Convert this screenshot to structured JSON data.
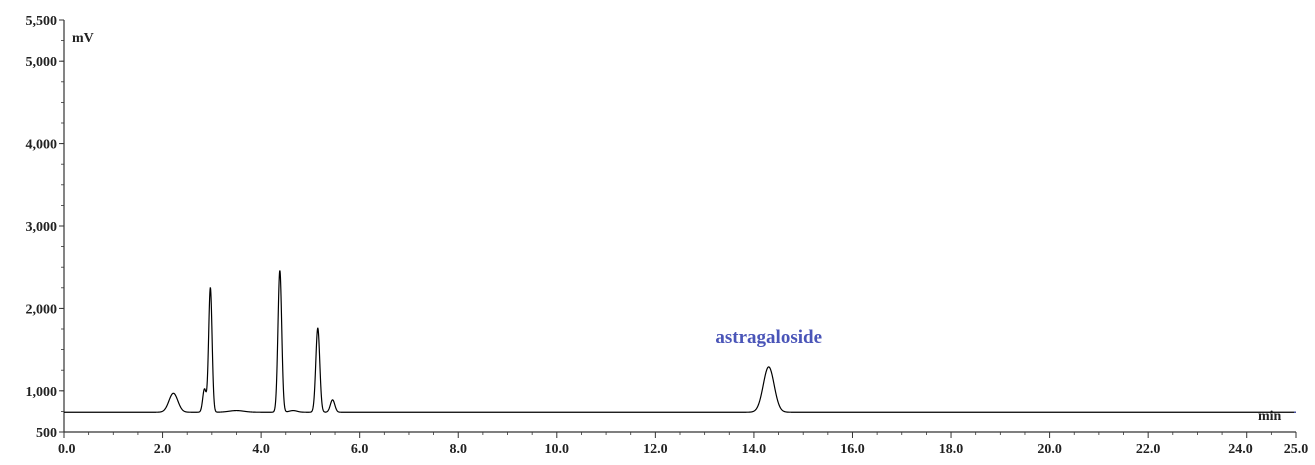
{
  "chart_data": {
    "type": "line",
    "title": "",
    "xlabel": "min",
    "ylabel": "mV",
    "xlim": [
      0,
      25
    ],
    "ylim": [
      500,
      5500
    ],
    "grid": false,
    "colors": {
      "trace": "#000000",
      "annotation": "#4a55b8",
      "axis": "#333333"
    },
    "x_ticks": [
      {
        "v": 0,
        "label": "0.0"
      },
      {
        "v": 2,
        "label": "2.0"
      },
      {
        "v": 4,
        "label": "4.0"
      },
      {
        "v": 6,
        "label": "6.0"
      },
      {
        "v": 8,
        "label": "8.0"
      },
      {
        "v": 10,
        "label": "10.0"
      },
      {
        "v": 12,
        "label": "12.0"
      },
      {
        "v": 14,
        "label": "14.0"
      },
      {
        "v": 16,
        "label": "16.0"
      },
      {
        "v": 18,
        "label": "18.0"
      },
      {
        "v": 20,
        "label": "20.0"
      },
      {
        "v": 22,
        "label": "22.0"
      },
      {
        "v": 24,
        "label": "24.0"
      },
      {
        "v": 25,
        "label": "25.0"
      }
    ],
    "y_ticks": [
      {
        "v": 500,
        "label": "500"
      },
      {
        "v": 1000,
        "label": "1,000"
      },
      {
        "v": 2000,
        "label": "2,000"
      },
      {
        "v": 3000,
        "label": "3,000"
      },
      {
        "v": 4000,
        "label": "4,000"
      },
      {
        "v": 5000,
        "label": "5,000"
      },
      {
        "v": 5500,
        "label": "5,500"
      }
    ],
    "baseline": 740,
    "series": [
      {
        "peaks": [
          {
            "rt": 2.22,
            "height": 970
          },
          {
            "rt": 2.85,
            "height": 1020
          },
          {
            "rt": 2.97,
            "height": 2250
          },
          {
            "rt": 3.5,
            "height": 760
          },
          {
            "rt": 4.38,
            "height": 2460
          },
          {
            "rt": 4.65,
            "height": 760
          },
          {
            "rt": 5.15,
            "height": 1760
          },
          {
            "rt": 5.45,
            "height": 890
          },
          {
            "rt": 14.3,
            "height": 1290
          }
        ]
      }
    ],
    "annotations": [
      {
        "text": "astragaloside",
        "x": 14.3,
        "y": 1580
      }
    ]
  }
}
